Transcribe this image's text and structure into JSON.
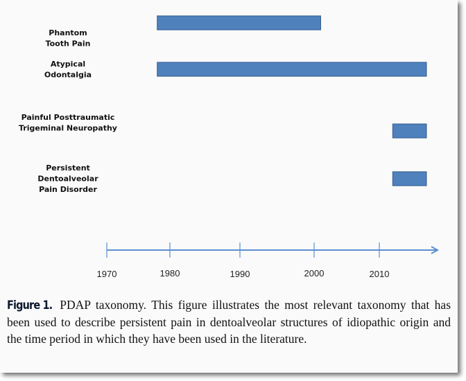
{
  "chart_data": {
    "type": "bar",
    "orientation": "horizontal-timeline",
    "categories": [
      [
        "Phantom",
        "Tooth Pain"
      ],
      [
        "Atypical",
        "Odontalgia"
      ],
      [
        "Painful Posttraumatic",
        "Trigeminal Neuropathy"
      ],
      [
        "Persistent",
        "Dentoalveolar",
        "Pain Disorder"
      ]
    ],
    "series": [
      {
        "ranges": [
          [
            1978,
            2001
          ],
          [
            1978,
            2017
          ],
          [
            2012,
            2017
          ],
          [
            2012,
            2017
          ]
        ]
      }
    ],
    "x_ticks": [
      "1970",
      "1980",
      "1990",
      "2000",
      "2010"
    ],
    "xlim": [
      1970,
      2019
    ],
    "grid": false,
    "bar_color": "#4f81bd",
    "axis_color": "#5b8fd0"
  },
  "caption": {
    "label": "Figure 1.",
    "text": "PDAP taxonomy. This figure illustrates the most relevant taxonomy that has been used to describe persistent pain in dentoalveolar structures of idiopathic origin and the time period in which they have been used in the literature."
  }
}
